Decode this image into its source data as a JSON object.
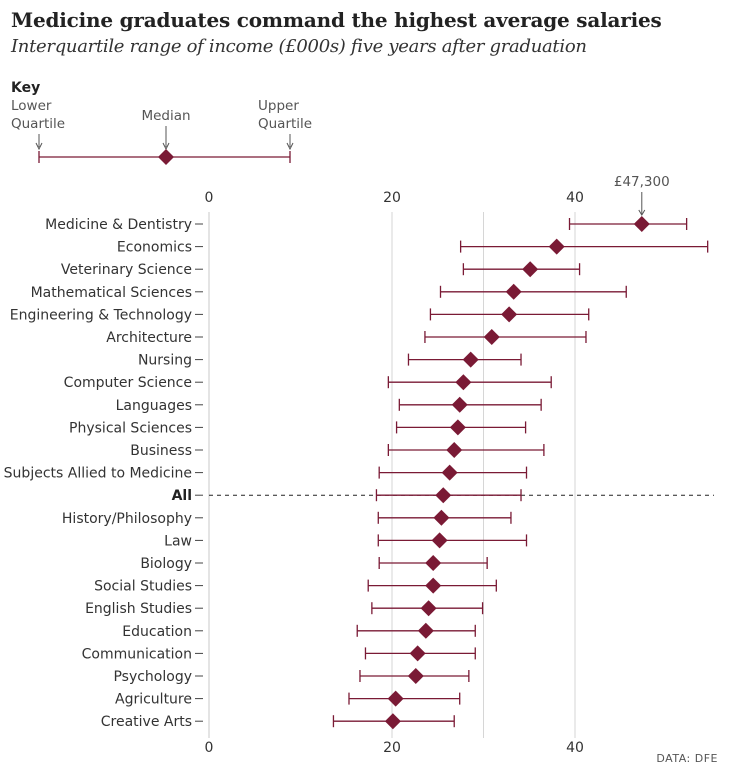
{
  "header": {
    "title": "Medicine graduates command the highest average salaries",
    "subtitle": "Interquartile range of income (£000s) five years after graduation"
  },
  "key": {
    "heading": "Key",
    "lower_line1": "Lower",
    "lower_line2": "Quartile",
    "median": "Median",
    "upper_line1": "Upper",
    "upper_line2": "Quartile"
  },
  "source": "DATA: DFE",
  "colors": {
    "marker": "#7a1a35",
    "whisker": "#7a1a35",
    "grid": "#d6d6d6",
    "text": "#333333"
  },
  "chart_data": {
    "type": "interval",
    "xlim": [
      0,
      50
    ],
    "x_ticks": [
      0,
      20,
      40
    ],
    "annotation": {
      "category": "Medicine & Dentistry",
      "text": "£47,300"
    },
    "reference_category": "All",
    "categories": [
      "Medicine & Dentistry",
      "Economics",
      "Veterinary Science",
      "Mathematical Sciences",
      "Engineering & Technology",
      "Architecture",
      "Nursing",
      "Computer Science",
      "Languages",
      "Physical Sciences",
      "Business",
      "Subjects Allied to Medicine",
      "All",
      "History/Philosophy",
      "Law",
      "Biology",
      "Social Studies",
      "English Studies",
      "Education",
      "Communication",
      "Psychology",
      "Agriculture",
      "Creative Arts"
    ],
    "series": [
      {
        "name": "Lower Quartile",
        "values": [
          39.4,
          27.5,
          27.8,
          25.3,
          24.2,
          23.6,
          21.8,
          19.6,
          20.8,
          20.5,
          19.6,
          18.6,
          18.3,
          18.5,
          18.5,
          18.6,
          17.4,
          17.8,
          16.2,
          17.1,
          16.5,
          15.3,
          13.6
        ]
      },
      {
        "name": "Median",
        "values": [
          47.3,
          38.0,
          35.1,
          33.3,
          32.8,
          30.9,
          28.6,
          27.8,
          27.4,
          27.2,
          26.8,
          26.3,
          25.6,
          25.4,
          25.2,
          24.5,
          24.5,
          24.0,
          23.7,
          22.8,
          22.6,
          20.4,
          20.1
        ]
      },
      {
        "name": "Upper Quartile",
        "values": [
          52.2,
          54.5,
          40.5,
          45.6,
          41.5,
          41.2,
          34.1,
          37.4,
          36.3,
          34.6,
          36.6,
          34.7,
          34.1,
          33.0,
          34.7,
          30.4,
          31.4,
          29.9,
          29.1,
          29.1,
          28.4,
          27.4,
          26.8
        ]
      }
    ]
  }
}
